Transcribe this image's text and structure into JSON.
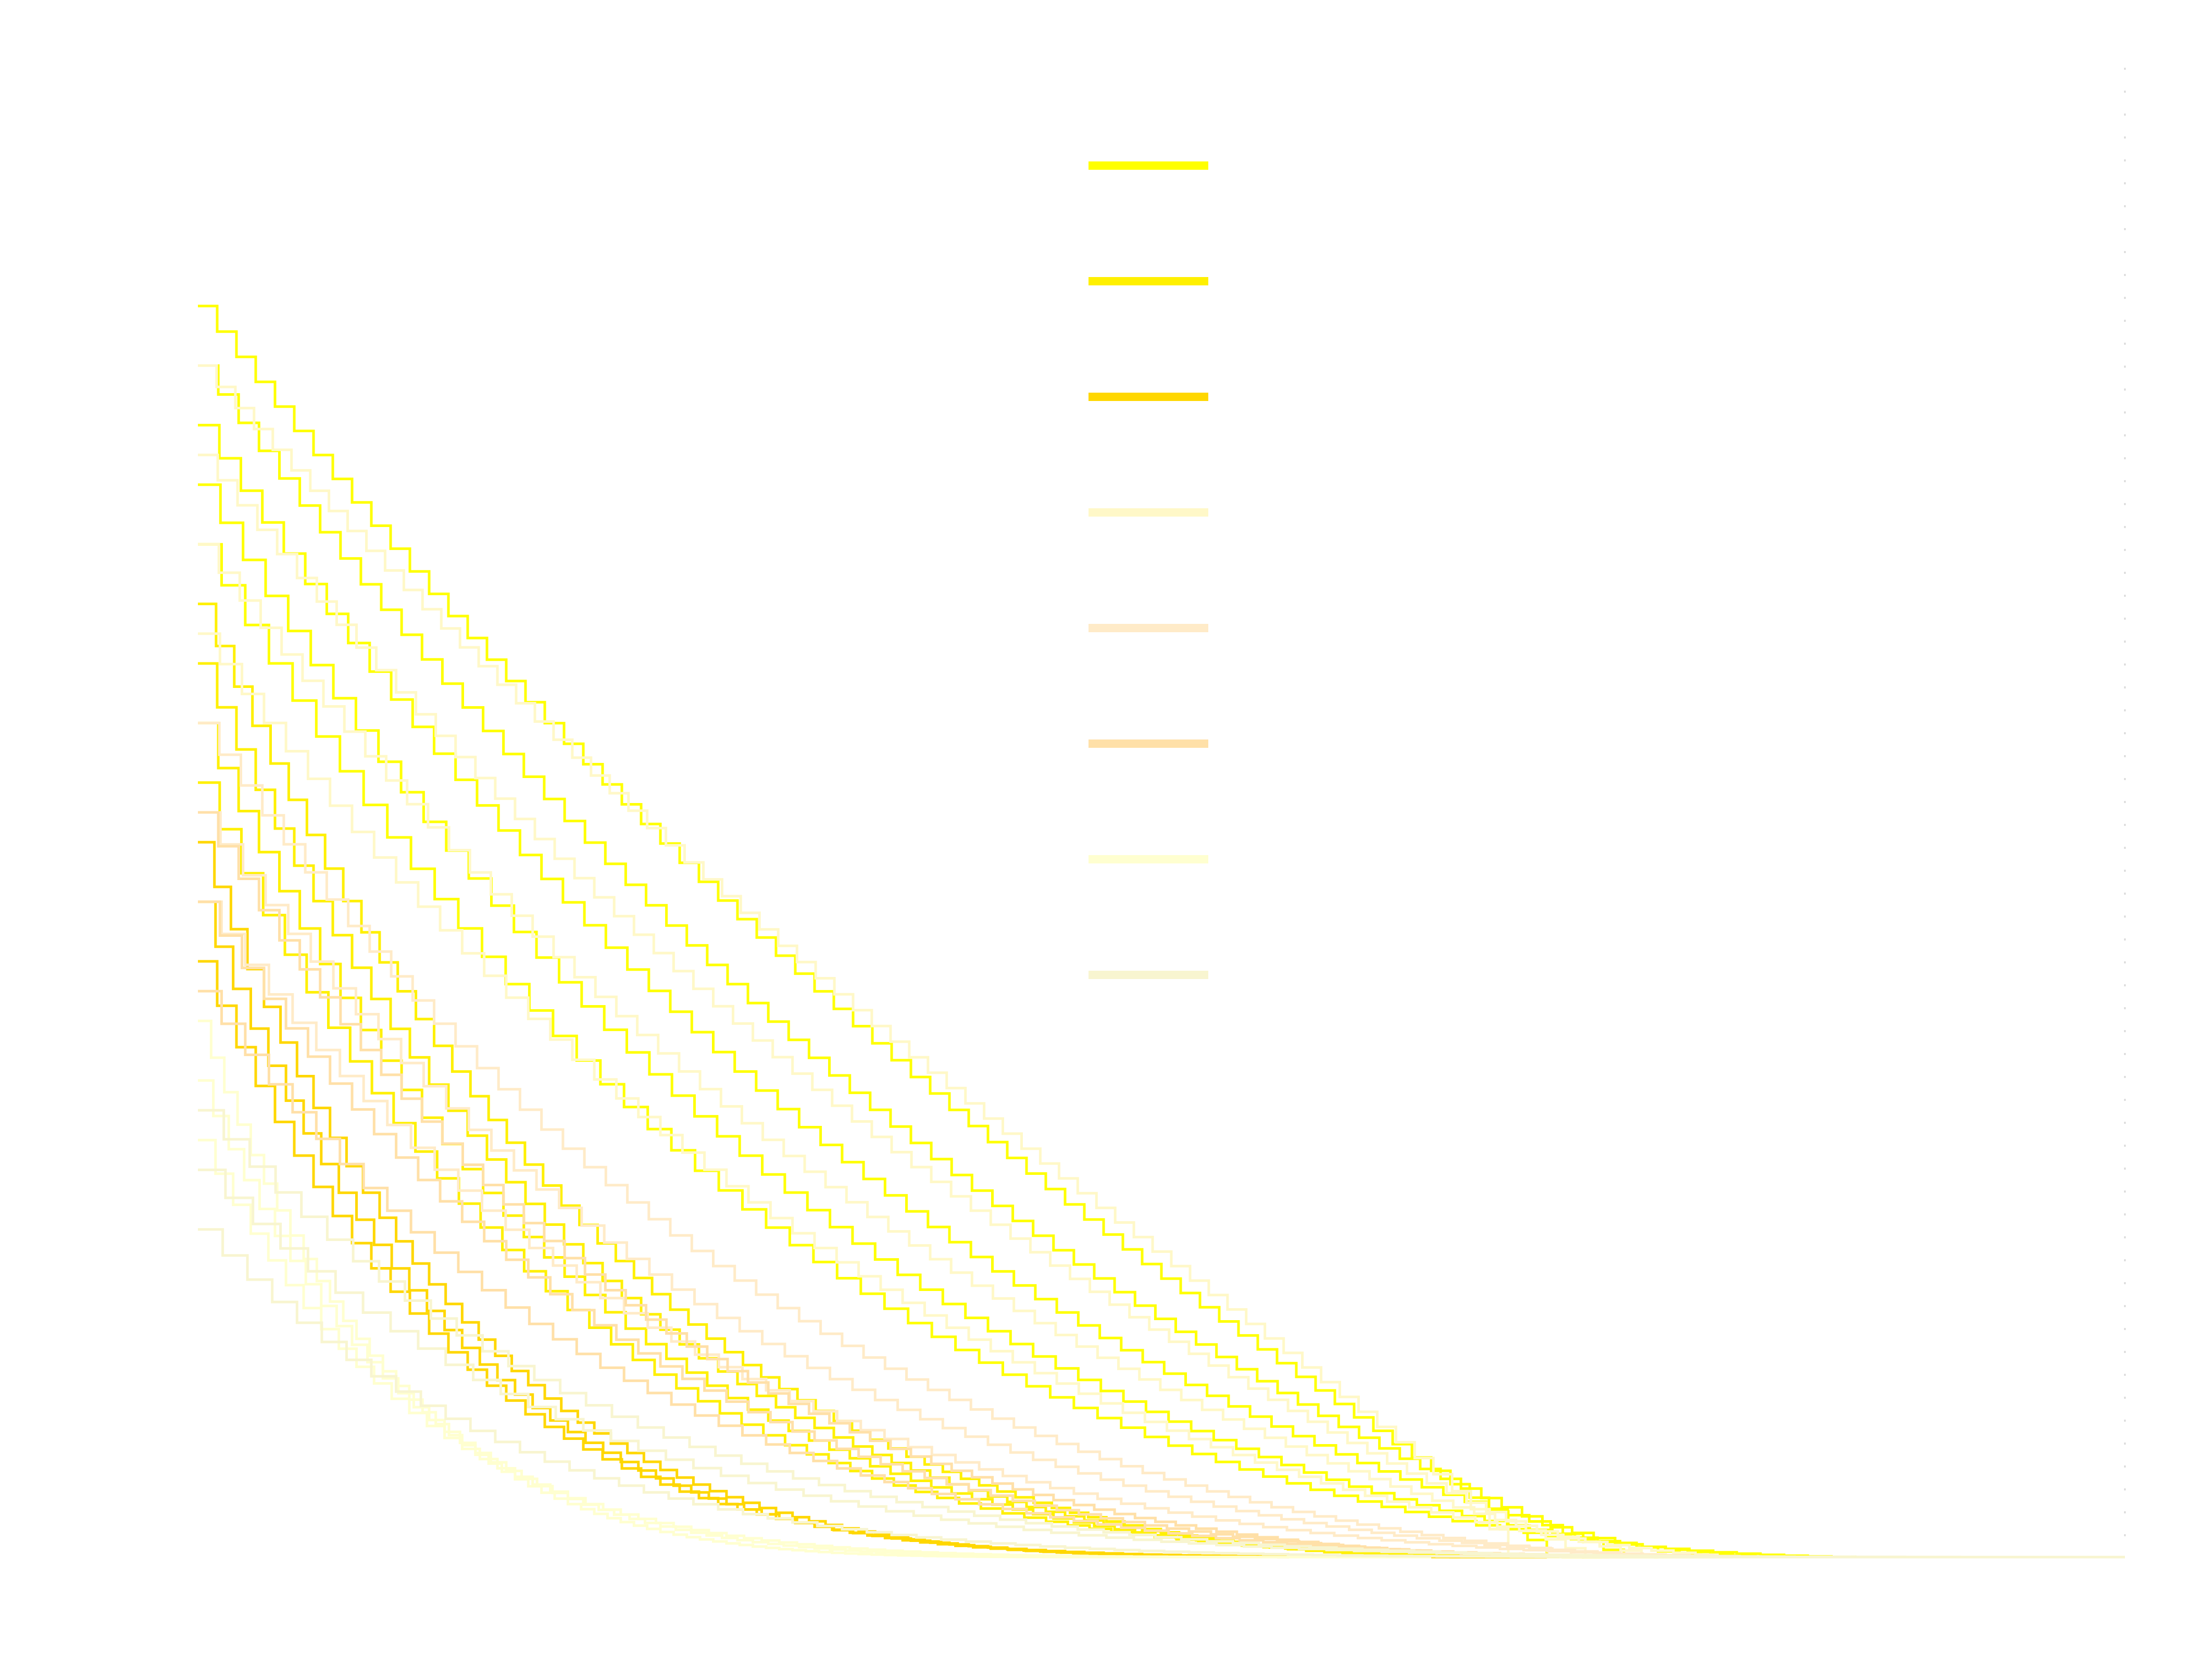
{
  "chart_data": {
    "type": "line",
    "title": "",
    "xlabel": "",
    "ylabel": "",
    "xlim": [
      0,
      1
    ],
    "ylim": [
      0,
      1
    ],
    "grid": false,
    "legend": {
      "placement": "top-center",
      "entries": [
        {
          "name": "",
          "color": "#ffff00"
        },
        {
          "name": "",
          "color": "#fff000"
        },
        {
          "name": "",
          "color": "#ffd700"
        },
        {
          "name": "",
          "color": "#fff8c8"
        },
        {
          "name": "",
          "color": "#ffebc8"
        },
        {
          "name": "",
          "color": "#ffe0a8"
        },
        {
          "name": "",
          "color": "#ffffd0"
        },
        {
          "name": "",
          "color": "#f8f5d0"
        }
      ]
    },
    "series": [
      {
        "color": "#ffff00",
        "curves": [
          {
            "y0": 0.84,
            "x_end": 0.7,
            "shape": 1.6
          },
          {
            "y0": 0.8,
            "x_end": 0.74,
            "shape": 1.9
          },
          {
            "y0": 0.76,
            "x_end": 0.78,
            "shape": 2.3
          },
          {
            "y0": 0.72,
            "x_end": 0.82,
            "shape": 2.8
          },
          {
            "y0": 0.68,
            "x_end": 0.86,
            "shape": 3.2
          }
        ]
      },
      {
        "color": "#fff000",
        "curves": [
          {
            "y0": 0.64,
            "x_end": 0.66,
            "shape": 3.5
          },
          {
            "y0": 0.6,
            "x_end": 0.7,
            "shape": 3.9
          },
          {
            "y0": 0.56,
            "x_end": 0.74,
            "shape": 4.3
          },
          {
            "y0": 0.52,
            "x_end": 0.79,
            "shape": 4.8
          }
        ]
      },
      {
        "color": "#ffd700",
        "curves": [
          {
            "y0": 0.48,
            "x_end": 0.6,
            "shape": 5.0
          },
          {
            "y0": 0.44,
            "x_end": 0.64,
            "shape": 5.5
          },
          {
            "y0": 0.4,
            "x_end": 0.7,
            "shape": 6.0
          }
        ]
      },
      {
        "color": "#fff8c8",
        "curves": [
          {
            "y0": 0.8,
            "x_end": 0.68,
            "shape": 1.4
          },
          {
            "y0": 0.74,
            "x_end": 0.72,
            "shape": 1.8
          },
          {
            "y0": 0.68,
            "x_end": 0.76,
            "shape": 2.2
          },
          {
            "y0": 0.62,
            "x_end": 0.8,
            "shape": 2.6
          }
        ]
      },
      {
        "color": "#ffebc8",
        "curves": [
          {
            "y0": 0.56,
            "x_end": 0.78,
            "shape": 3.0
          },
          {
            "y0": 0.5,
            "x_end": 0.82,
            "shape": 3.4
          },
          {
            "y0": 0.44,
            "x_end": 0.86,
            "shape": 3.9
          }
        ]
      },
      {
        "color": "#ffe0a8",
        "curves": [
          {
            "y0": 0.5,
            "x_end": 0.74,
            "shape": 3.6
          },
          {
            "y0": 0.44,
            "x_end": 0.8,
            "shape": 4.1
          },
          {
            "y0": 0.38,
            "x_end": 0.86,
            "shape": 4.6
          }
        ]
      },
      {
        "color": "#ffffd0",
        "curves": [
          {
            "y0": 0.36,
            "x_end": 0.48,
            "shape": 5.5
          },
          {
            "y0": 0.32,
            "x_end": 0.56,
            "shape": 6.0
          },
          {
            "y0": 0.28,
            "x_end": 0.64,
            "shape": 6.5
          }
        ]
      },
      {
        "color": "#f8f5d0",
        "curves": [
          {
            "y0": 0.3,
            "x_end": 0.94,
            "shape": 5.2
          },
          {
            "y0": 0.26,
            "x_end": 1.0,
            "shape": 5.8
          },
          {
            "y0": 0.22,
            "x_end": 0.9,
            "shape": 6.4
          }
        ]
      }
    ]
  }
}
